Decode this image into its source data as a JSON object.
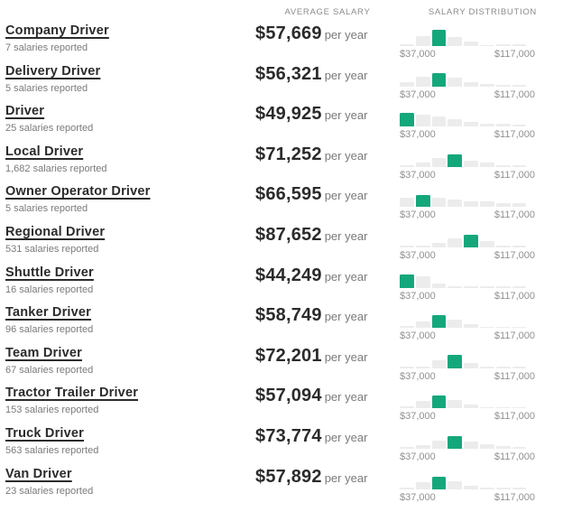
{
  "header": {
    "average_salary_label": "AVERAGE SALARY",
    "salary_distribution_label": "SALARY DISTRIBUTION"
  },
  "labels": {
    "per_year": "per year",
    "axis_min": "$37,000",
    "axis_max": "$117,000"
  },
  "colors": {
    "accent_green": "#15a77c",
    "bar_gray": "#ececec",
    "title_text": "#2b2b2b",
    "muted_text": "#7a7a7a",
    "axis_text": "#909090"
  },
  "rows": [
    {
      "title": "Company Driver",
      "reported": "7 salaries reported",
      "salary": "$57,669",
      "bars": [
        2,
        11,
        18,
        10,
        5,
        1,
        2,
        2
      ],
      "highlight_index": 2
    },
    {
      "title": "Delivery Driver",
      "reported": "5 salaries reported",
      "salary": "$56,321",
      "bars": [
        5,
        11,
        15,
        10,
        5,
        3,
        1,
        1
      ],
      "highlight_index": 2
    },
    {
      "title": "Driver",
      "reported": "25 salaries reported",
      "salary": "$49,925",
      "bars": [
        15,
        13,
        11,
        8,
        5,
        3,
        3,
        2
      ],
      "highlight_index": 0
    },
    {
      "title": "Local Driver",
      "reported": "1,682 salaries reported",
      "salary": "$71,252",
      "bars": [
        1,
        5,
        10,
        14,
        7,
        5,
        2,
        1
      ],
      "highlight_index": 3
    },
    {
      "title": "Owner Operator Driver",
      "reported": "5 salaries reported",
      "salary": "$66,595",
      "bars": [
        10,
        13,
        10,
        8,
        6,
        6,
        4,
        4
      ],
      "highlight_index": 1
    },
    {
      "title": "Regional Driver",
      "reported": "531 salaries reported",
      "salary": "$87,652",
      "bars": [
        1,
        2,
        5,
        10,
        14,
        7,
        2,
        1
      ],
      "highlight_index": 4
    },
    {
      "title": "Shuttle Driver",
      "reported": "16 salaries reported",
      "salary": "$44,249",
      "bars": [
        15,
        13,
        5,
        2,
        1,
        1,
        1,
        1
      ],
      "highlight_index": 0
    },
    {
      "title": "Tanker Driver",
      "reported": "96 salaries reported",
      "salary": "$58,749",
      "bars": [
        2,
        7,
        14,
        9,
        4,
        1,
        1,
        1
      ],
      "highlight_index": 2
    },
    {
      "title": "Team Driver",
      "reported": "67 salaries reported",
      "salary": "$72,201",
      "bars": [
        1,
        1,
        9,
        15,
        6,
        1,
        1,
        1
      ],
      "highlight_index": 3
    },
    {
      "title": "Tractor Trailer Driver",
      "reported": "153 salaries reported",
      "salary": "$57,094",
      "bars": [
        2,
        8,
        14,
        9,
        4,
        1,
        1,
        1
      ],
      "highlight_index": 2
    },
    {
      "title": "Truck Driver",
      "reported": "563 salaries reported",
      "salary": "$73,774",
      "bars": [
        1,
        4,
        9,
        14,
        8,
        5,
        3,
        1
      ],
      "highlight_index": 3
    },
    {
      "title": "Van Driver",
      "reported": "23 salaries reported",
      "salary": "$57,892",
      "bars": [
        2,
        8,
        14,
        9,
        4,
        1,
        2,
        1
      ],
      "highlight_index": 2
    }
  ]
}
